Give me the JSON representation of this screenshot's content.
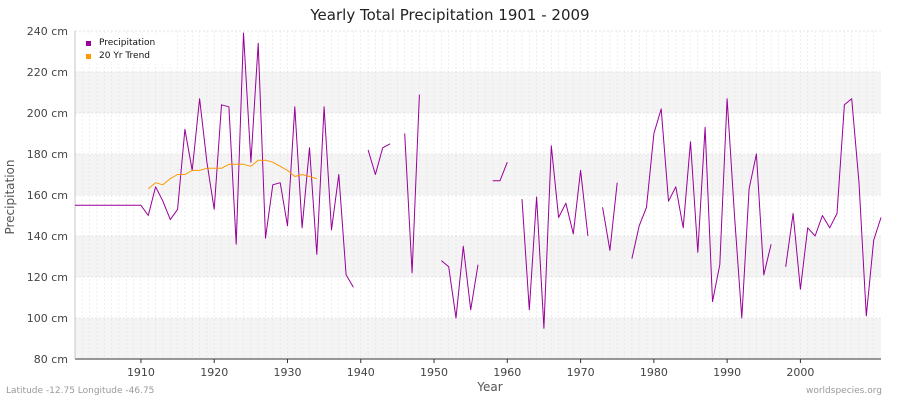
{
  "chart_data": {
    "type": "line",
    "title": "Yearly Total Precipitation 1901 - 2009",
    "xlabel": "Year",
    "ylabel": "Precipitation",
    "xlim": [
      1901,
      2009
    ],
    "ylim": [
      80,
      240
    ],
    "y_unit": "cm",
    "y_ticks": [
      80,
      100,
      120,
      140,
      160,
      180,
      200,
      220,
      240
    ],
    "y_tick_labels": [
      "80 cm",
      "100 cm",
      "120 cm",
      "140 cm",
      "160 cm",
      "180 cm",
      "200 cm",
      "220 cm",
      "240 cm"
    ],
    "x_ticks": [
      1910,
      1920,
      1930,
      1940,
      1950,
      1960,
      1970,
      1980,
      1990,
      2000
    ],
    "x_tick_labels": [
      "1910",
      "1920",
      "1930",
      "1940",
      "1950",
      "1960",
      "1970",
      "1980",
      "1990",
      "2000"
    ],
    "grid": true,
    "legend_position": "top-left",
    "series": [
      {
        "name": "Precipitation",
        "color": "#990099",
        "points": [
          [
            1901,
            155
          ],
          [
            1902,
            155
          ],
          [
            1903,
            155
          ],
          [
            1904,
            155
          ],
          [
            1905,
            155
          ],
          [
            1906,
            155
          ],
          [
            1907,
            155
          ],
          [
            1908,
            155
          ],
          [
            1909,
            155
          ],
          [
            1910,
            155
          ],
          [
            1911,
            150
          ],
          [
            1912,
            164
          ],
          [
            1913,
            157
          ],
          [
            1914,
            148
          ],
          [
            1915,
            153
          ],
          [
            1916,
            192
          ],
          [
            1917,
            172
          ],
          [
            1918,
            207
          ],
          [
            1919,
            176
          ],
          [
            1920,
            153
          ],
          [
            1921,
            204
          ],
          [
            1922,
            203
          ],
          [
            1923,
            136
          ],
          [
            1924,
            239
          ],
          [
            1925,
            176
          ],
          [
            1926,
            234
          ],
          [
            1927,
            139
          ],
          [
            1928,
            165
          ],
          [
            1929,
            166
          ],
          [
            1930,
            145
          ],
          [
            1931,
            203
          ],
          [
            1932,
            144
          ],
          [
            1933,
            183
          ],
          [
            1934,
            131
          ],
          [
            1935,
            203
          ],
          [
            1936,
            143
          ],
          [
            1937,
            170
          ],
          [
            1938,
            121
          ],
          [
            1939,
            115
          ],
          [
            1940,
            null
          ],
          [
            1941,
            182
          ],
          [
            1942,
            170
          ],
          [
            1943,
            183
          ],
          [
            1944,
            185
          ],
          [
            1945,
            null
          ],
          [
            1946,
            190
          ],
          [
            1947,
            122
          ],
          [
            1948,
            209
          ],
          [
            1949,
            null
          ],
          [
            1950,
            null
          ],
          [
            1951,
            128
          ],
          [
            1952,
            125
          ],
          [
            1953,
            100
          ],
          [
            1954,
            135
          ],
          [
            1955,
            104
          ],
          [
            1956,
            126
          ],
          [
            1957,
            null
          ],
          [
            1958,
            167
          ],
          [
            1959,
            167
          ],
          [
            1960,
            176
          ],
          [
            1961,
            null
          ],
          [
            1962,
            158
          ],
          [
            1963,
            104
          ],
          [
            1964,
            159
          ],
          [
            1965,
            95
          ],
          [
            1966,
            184
          ],
          [
            1967,
            149
          ],
          [
            1968,
            156
          ],
          [
            1969,
            141
          ],
          [
            1970,
            172
          ],
          [
            1971,
            140
          ],
          [
            1972,
            null
          ],
          [
            1973,
            154
          ],
          [
            1974,
            133
          ],
          [
            1975,
            166
          ],
          [
            1976,
            null
          ],
          [
            1977,
            129
          ],
          [
            1978,
            145
          ],
          [
            1979,
            154
          ],
          [
            1980,
            190
          ],
          [
            1981,
            202
          ],
          [
            1982,
            157
          ],
          [
            1983,
            164
          ],
          [
            1984,
            144
          ],
          [
            1985,
            186
          ],
          [
            1986,
            132
          ],
          [
            1987,
            193
          ],
          [
            1988,
            108
          ],
          [
            1989,
            126
          ],
          [
            1990,
            207
          ],
          [
            1991,
            150
          ],
          [
            1992,
            100
          ],
          [
            1993,
            163
          ],
          [
            1994,
            180
          ],
          [
            1995,
            121
          ],
          [
            1996,
            136
          ],
          [
            1997,
            null
          ],
          [
            1998,
            125
          ],
          [
            1999,
            151
          ],
          [
            2000,
            114
          ],
          [
            2001,
            144
          ],
          [
            2002,
            140
          ],
          [
            2003,
            150
          ],
          [
            2004,
            144
          ],
          [
            2005,
            151
          ],
          [
            2006,
            204
          ],
          [
            2007,
            207
          ],
          [
            2008,
            166
          ],
          [
            2009,
            101
          ],
          [
            2010,
            138
          ],
          [
            2011,
            149
          ]
        ]
      },
      {
        "name": "20 Yr Trend",
        "color": "#ff9900",
        "points": [
          [
            1911,
            163
          ],
          [
            1912,
            166
          ],
          [
            1913,
            165
          ],
          [
            1914,
            168
          ],
          [
            1915,
            170
          ],
          [
            1916,
            170
          ],
          [
            1917,
            172
          ],
          [
            1918,
            172
          ],
          [
            1919,
            173
          ],
          [
            1920,
            173
          ],
          [
            1921,
            173
          ],
          [
            1922,
            175
          ],
          [
            1923,
            175
          ],
          [
            1924,
            175
          ],
          [
            1925,
            174
          ],
          [
            1926,
            177
          ],
          [
            1927,
            177
          ],
          [
            1928,
            176
          ],
          [
            1929,
            174
          ],
          [
            1930,
            172
          ],
          [
            1931,
            169
          ],
          [
            1932,
            170
          ],
          [
            1933,
            169
          ],
          [
            1934,
            168
          ]
        ]
      }
    ]
  },
  "footer": {
    "left": "Latitude -12.75 Longitude -46.75",
    "right": "worldspecies.org"
  }
}
